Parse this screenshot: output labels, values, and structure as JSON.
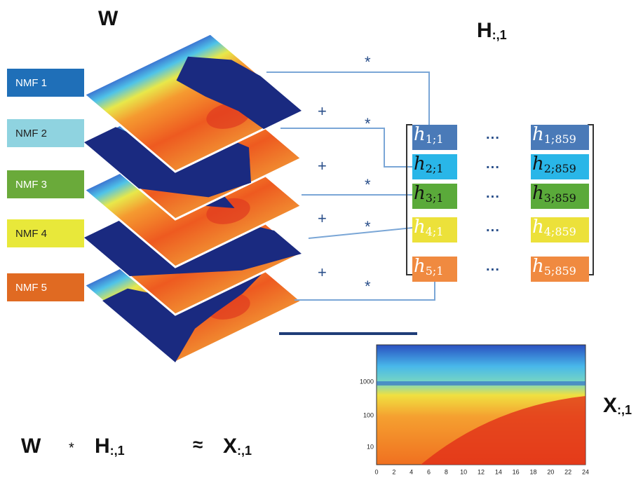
{
  "header": {
    "w_label": "W",
    "h_label": {
      "main": "H",
      "sub": ":,1"
    }
  },
  "layers": [
    {
      "label": "NMF 1"
    },
    {
      "label": "NMF 2"
    },
    {
      "label": "NMF 3"
    },
    {
      "label": "NMF 4"
    },
    {
      "label": "NMF 5"
    }
  ],
  "operators": {
    "multiply": [
      "*",
      "*",
      "*",
      "*",
      "*"
    ],
    "plus": [
      "+",
      "+",
      "+",
      "+"
    ]
  },
  "matrix": {
    "rows": [
      {
        "first": {
          "main": "h",
          "sub": "1;1"
        },
        "dots": "···",
        "last": {
          "main": "h",
          "sub": "1;859"
        }
      },
      {
        "first": {
          "main": "h",
          "sub": "2;1"
        },
        "dots": "···",
        "last": {
          "main": "h",
          "sub": "2;859"
        }
      },
      {
        "first": {
          "main": "h",
          "sub": "3;1"
        },
        "dots": "···",
        "last": {
          "main": "h",
          "sub": "3;859"
        }
      },
      {
        "first": {
          "main": "h",
          "sub": "4;1"
        },
        "dots": "···",
        "last": {
          "main": "h",
          "sub": "4;859"
        }
      },
      {
        "first": {
          "main": "h",
          "sub": "5;1"
        },
        "dots": "···",
        "last": {
          "main": "h",
          "sub": "5;859"
        }
      }
    ]
  },
  "heatmap": {
    "yticks": [
      1000,
      100,
      10
    ],
    "xticks": [
      0,
      2,
      4,
      6,
      8,
      10,
      12,
      14,
      16,
      18,
      20,
      22,
      24
    ]
  },
  "x_label": {
    "main": "X",
    "sub": ":,1"
  },
  "formula": {
    "w": "W",
    "op": "*",
    "h": {
      "main": "H",
      "sub": ":,1"
    },
    "approx": "≈",
    "x": {
      "main": "X",
      "sub": ":,1"
    }
  }
}
